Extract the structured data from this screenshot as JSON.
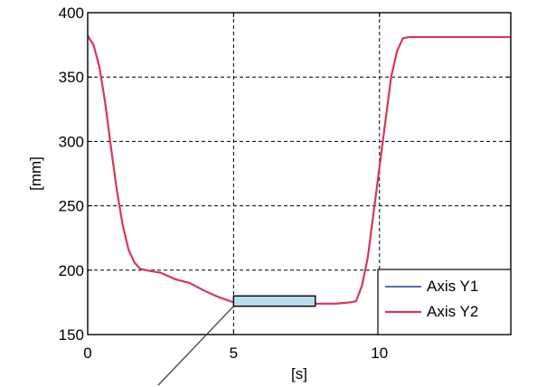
{
  "chart_data": {
    "type": "line",
    "xlabel": "[s]",
    "ylabel": "[mm]",
    "xlim": [
      0,
      14.5
    ],
    "ylim": [
      150,
      400
    ],
    "xticks": [
      0,
      5,
      10
    ],
    "yticks": [
      150,
      200,
      250,
      300,
      350,
      400
    ],
    "xtick_labels": [
      "0",
      "5",
      "10"
    ],
    "ytick_labels": [
      "150",
      "200",
      "250",
      "300",
      "350",
      "400"
    ],
    "grid": true,
    "legend_position": "bottom-right",
    "series": [
      {
        "name": "Axis Y1",
        "color": "#1f3b8c",
        "x": [
          0,
          0.2,
          0.4,
          0.6,
          0.8,
          1.0,
          1.2,
          1.4,
          1.6,
          1.8,
          2.0,
          2.5,
          3.0,
          3.5,
          4.0,
          4.5,
          5.0,
          5.5,
          6.0,
          7.0,
          8.0,
          8.5,
          9.0,
          9.2,
          9.4,
          9.6,
          9.8,
          10.0,
          10.2,
          10.4,
          10.6,
          10.8,
          11.0,
          12.0,
          13.0,
          14.5
        ],
        "y": [
          382,
          375,
          358,
          330,
          295,
          262,
          235,
          216,
          206,
          201,
          200,
          198,
          193,
          190,
          184,
          179,
          175,
          174,
          174,
          174,
          174,
          174,
          175,
          176,
          188,
          210,
          245,
          280,
          315,
          350,
          370,
          380,
          381,
          381,
          381,
          381
        ]
      },
      {
        "name": "Axis Y2",
        "color": "#d9365a",
        "x": [
          0,
          0.2,
          0.4,
          0.6,
          0.8,
          1.0,
          1.2,
          1.4,
          1.6,
          1.8,
          2.0,
          2.5,
          3.0,
          3.5,
          4.0,
          4.5,
          5.0,
          5.5,
          6.0,
          7.0,
          8.0,
          8.5,
          9.0,
          9.2,
          9.4,
          9.6,
          9.8,
          10.0,
          10.2,
          10.4,
          10.6,
          10.8,
          11.0,
          12.0,
          13.0,
          14.5
        ],
        "y": [
          382,
          375,
          358,
          330,
          295,
          262,
          235,
          216,
          206,
          201,
          200,
          198,
          193,
          190,
          184,
          179,
          175,
          174,
          174,
          174,
          174,
          174,
          175,
          176,
          188,
          210,
          245,
          280,
          315,
          350,
          370,
          380,
          381,
          381,
          381,
          381
        ]
      }
    ],
    "highlight_box": {
      "x_range": [
        5.0,
        7.8
      ],
      "y_range": [
        172,
        180
      ],
      "fill": "#b7dcee",
      "stroke": "#000000"
    },
    "annotation_arrow": {
      "from_x_data": 5.0,
      "from_y_data": 172
    }
  }
}
